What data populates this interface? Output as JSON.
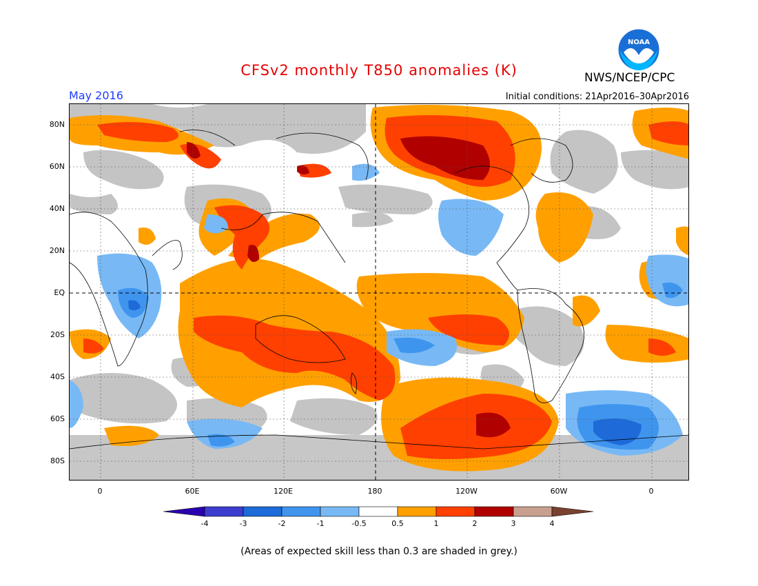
{
  "title": "CFSv2 monthly T850 anomalies (K)",
  "agency": "NWS/NCEP/CPC",
  "month": "May 2016",
  "initial_conditions": "Initial conditions: 21Apr2016–30Apr2016",
  "logo_text": "NOAA",
  "footnote": "(Areas of expected skill less than 0.3 are shaded in grey.)",
  "lat_labels": [
    "80N",
    "60N",
    "40N",
    "20N",
    "EQ",
    "20S",
    "40S",
    "60S",
    "80S"
  ],
  "lon_labels": [
    "0",
    "60E",
    "120E",
    "180",
    "120W",
    "60W",
    "0"
  ],
  "colorbar": {
    "labels": [
      "-4",
      "-3",
      "-2",
      "-1",
      "-0.5",
      "0.5",
      "1",
      "2",
      "3",
      "4"
    ],
    "colors": [
      "#2a00b0",
      "#3c3ccf",
      "#1e6ad8",
      "#3f95ee",
      "#78b9f5",
      "#ffffff",
      "#ffa000",
      "#ff4000",
      "#b00000",
      "#c8a090",
      "#7a4030"
    ]
  },
  "palette": {
    "grey": "#c4c4c4",
    "orange": "#ffa000",
    "red": "#ff4000",
    "darkred": "#b00000",
    "lightblue": "#78b9f5",
    "blue": "#3f95ee",
    "midblue": "#1e6ad8",
    "darkblue": "#3c3ccf"
  }
}
